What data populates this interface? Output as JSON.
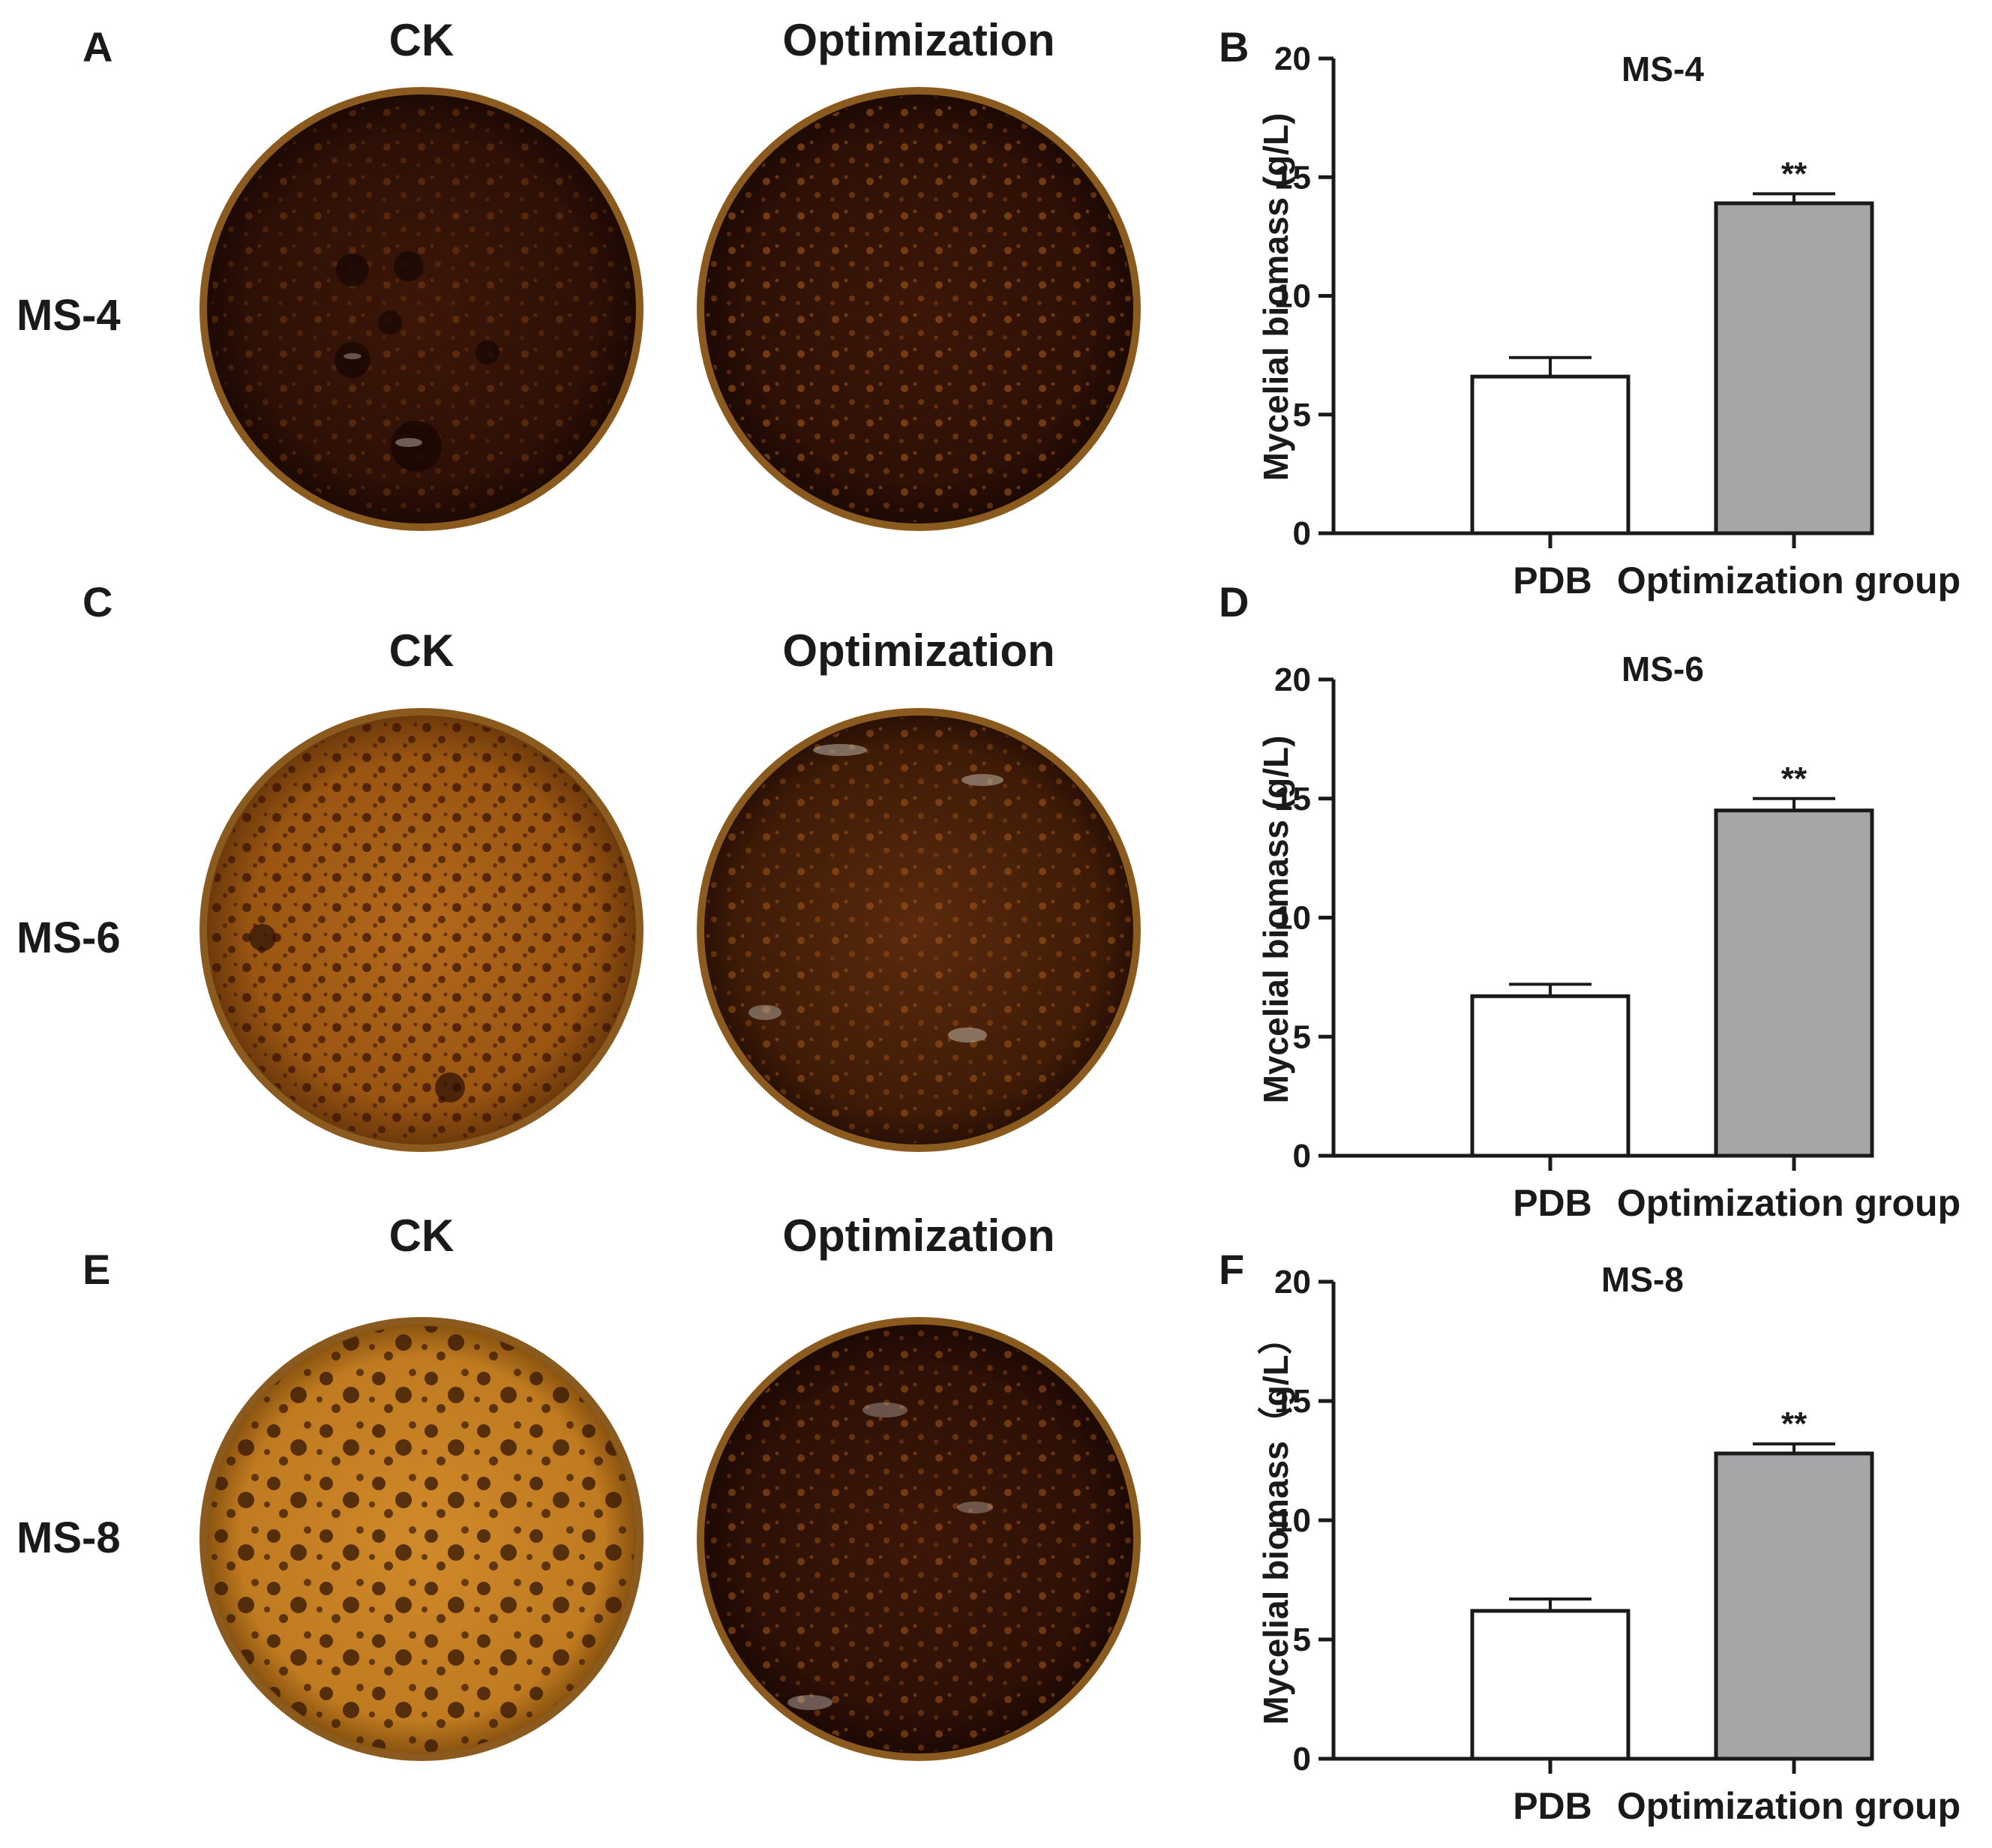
{
  "panel_labels": {
    "A": "A",
    "B": "B",
    "C": "C",
    "D": "D",
    "E": "E",
    "F": "F"
  },
  "photo_rows": [
    {
      "row_label": "MS-4",
      "col_left": "CK",
      "col_right": "Optimization"
    },
    {
      "row_label": "MS-6",
      "col_left": "CK",
      "col_right": "Optimization"
    },
    {
      "row_label": "MS-8",
      "col_left": "CK",
      "col_right": "Optimization"
    }
  ],
  "colors": {
    "pdb_bar": "#ffffff",
    "opt_bar": "#a6a6a9",
    "axis": "#1a1a1a"
  },
  "chart_data": [
    {
      "type": "bar",
      "title": "MS-4",
      "categories": [
        "PDB",
        "Optimization group"
      ],
      "values": [
        6.6,
        13.9
      ],
      "errors": [
        0.8,
        0.4
      ],
      "significance": [
        "",
        "**"
      ],
      "xlabel": "",
      "ylabel": "Mycelial biomass (g/L)",
      "ylim": [
        0,
        20
      ],
      "yticks": [
        "0",
        "5",
        "10",
        "15",
        "20"
      ]
    },
    {
      "type": "bar",
      "title": "MS-6",
      "categories": [
        "PDB",
        "Optimization group"
      ],
      "values": [
        6.7,
        14.5
      ],
      "errors": [
        0.5,
        0.5
      ],
      "significance": [
        "",
        "**"
      ],
      "xlabel": "",
      "ylabel": "Mycelial biomass (g/L)",
      "ylim": [
        0,
        20
      ],
      "yticks": [
        "0",
        "5",
        "10",
        "15",
        "20"
      ]
    },
    {
      "type": "bar",
      "title": "MS-8",
      "categories": [
        "PDB",
        "Optimization group"
      ],
      "values": [
        6.2,
        12.8
      ],
      "errors": [
        0.5,
        0.4
      ],
      "significance": [
        "",
        "**"
      ],
      "xlabel": "",
      "ylabel": "Mycelial biomass（g/L）",
      "ylim": [
        0,
        20
      ],
      "yticks": [
        "0",
        "5",
        "10",
        "15",
        "20"
      ]
    }
  ]
}
